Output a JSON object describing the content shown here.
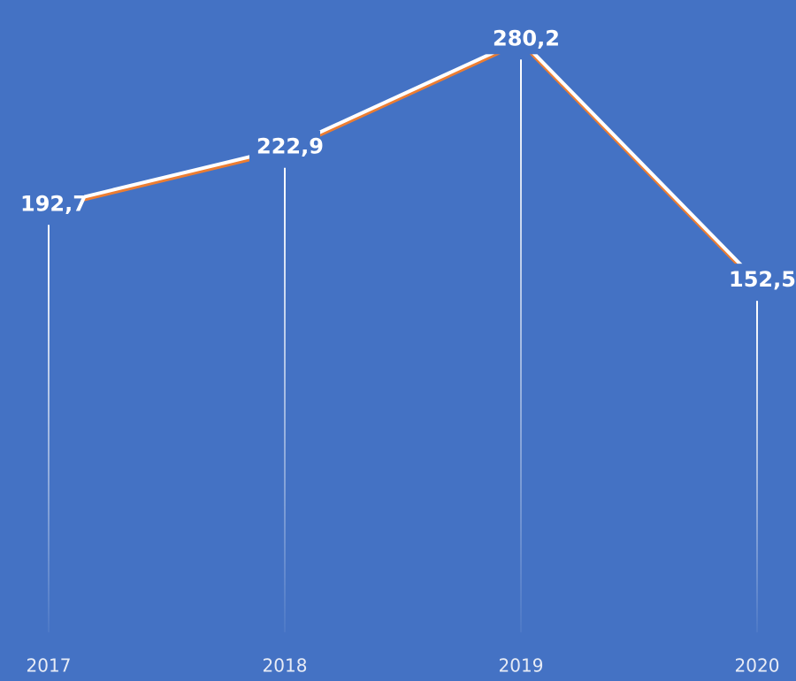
{
  "chart_data": {
    "type": "line",
    "categories": [
      "2017",
      "2018",
      "2019",
      "2020"
    ],
    "series": [
      {
        "color": "#ffffff",
        "shadow_color": "#ed7d31",
        "values": [
          192.7,
          222.9,
          280.2,
          152.5
        ],
        "value_labels": [
          "192,7",
          "222,9",
          "280,2",
          "152,5"
        ]
      }
    ],
    "ylim": [
      0,
      300
    ]
  }
}
